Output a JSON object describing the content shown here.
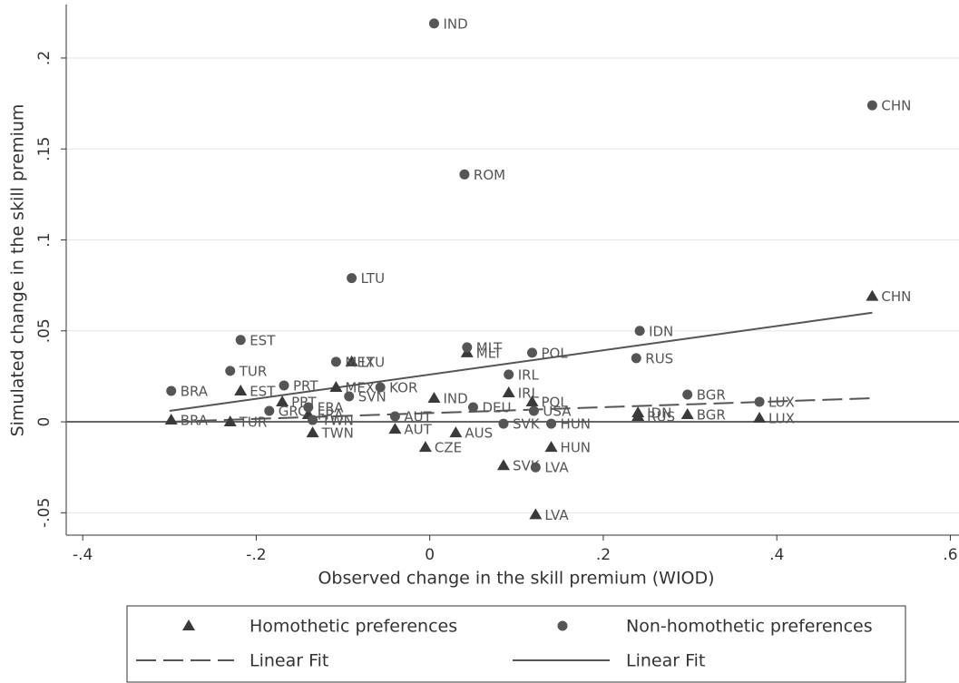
{
  "chart_data": {
    "type": "scatter",
    "x_label": "Observed change in the skill premium  (WIOD)",
    "y_label": "Simulated change in the skill premium",
    "xlim": [
      -0.419,
      0.61
    ],
    "ylim": [
      -0.0623,
      0.2294
    ],
    "xticks": [
      {
        "value": -0.4,
        "label": "-.4"
      },
      {
        "value": -0.2,
        "label": "-.2"
      },
      0,
      {
        "value": 0.2,
        "label": ".2"
      },
      {
        "value": 0.4,
        "label": ".4"
      },
      {
        "value": 0.6,
        "label": ".6"
      }
    ],
    "yticks": [
      {
        "value": -0.05,
        "label": "-.05"
      },
      0,
      {
        "value": 0.05,
        "label": ".05"
      },
      {
        "value": 0.1,
        "label": ".1"
      },
      {
        "value": 0.15,
        "label": ".15"
      },
      {
        "value": 0.2,
        "label": ".2"
      }
    ],
    "grid": true,
    "reference_line": 0,
    "series": [
      {
        "name": "Homothetic preferences",
        "marker": "triangle",
        "color": "#3a3a3a",
        "labels": [
          "CHN",
          "MLT",
          "LTU",
          "MEX",
          "EST",
          "IRL",
          "IND",
          "POL",
          "PRT",
          "FRA",
          "IDN",
          "BGR",
          "LUX",
          "BRA",
          "TUR",
          "RUS",
          "TWN",
          "AUT",
          "AUS",
          "CZE",
          "HUN",
          "SVK",
          "LVA"
        ],
        "x": [
          0.51,
          0.043,
          -0.09,
          -0.108,
          -0.218,
          0.091,
          0.005,
          0.118,
          -0.17,
          -0.14,
          0.24,
          0.297,
          0.38,
          -0.298,
          -0.23,
          0.24,
          -0.135,
          -0.04,
          0.03,
          -0.005,
          0.14,
          0.085,
          0.122
        ],
        "values": [
          0.069,
          0.038,
          0.033,
          0.019,
          0.017,
          0.016,
          0.013,
          0.011,
          0.011,
          0.004,
          0.005,
          0.004,
          0.002,
          0.001,
          0.0,
          0.003,
          -0.006,
          -0.004,
          -0.006,
          -0.014,
          -0.014,
          -0.024,
          -0.051
        ]
      },
      {
        "name": "Non-homothetic preferences",
        "marker": "circle",
        "color": "#555555",
        "labels": [
          "IND",
          "CHN",
          "ROM",
          "LTU",
          "IDN",
          "EST",
          "MLT",
          "POL",
          "RUS",
          "MEX",
          "TUR",
          "IRL",
          "PRT",
          "KOR",
          "BRA",
          "BGR",
          "SVN",
          "LUX",
          "HUN",
          "FRA",
          "GRC",
          "DEU",
          "USA",
          "AUT",
          "SVK",
          "TWN",
          "LVA"
        ],
        "x": [
          0.005,
          0.51,
          0.04,
          -0.09,
          0.242,
          -0.218,
          0.043,
          0.118,
          0.238,
          -0.108,
          -0.23,
          0.091,
          -0.168,
          -0.057,
          -0.298,
          0.297,
          -0.093,
          0.38,
          0.14,
          -0.14,
          -0.185,
          0.05,
          0.12,
          -0.04,
          0.085,
          -0.135,
          0.122
        ],
        "values": [
          0.219,
          0.174,
          0.136,
          0.079,
          0.05,
          0.045,
          0.041,
          0.038,
          0.035,
          0.033,
          0.028,
          0.026,
          0.02,
          0.019,
          0.017,
          0.015,
          0.014,
          0.011,
          -0.001,
          0.008,
          0.006,
          0.008,
          0.006,
          0.003,
          -0.001,
          0.001,
          -0.025
        ]
      }
    ],
    "fits": [
      {
        "name": "Linear Fit",
        "dash": true,
        "color": "#555555",
        "x": [
          -0.3,
          0.51
        ],
        "values": [
          0.0,
          0.013
        ]
      },
      {
        "name": "Linear Fit",
        "dash": false,
        "color": "#555555",
        "x": [
          -0.3,
          0.51
        ],
        "values": [
          0.006,
          0.06
        ]
      }
    ]
  }
}
